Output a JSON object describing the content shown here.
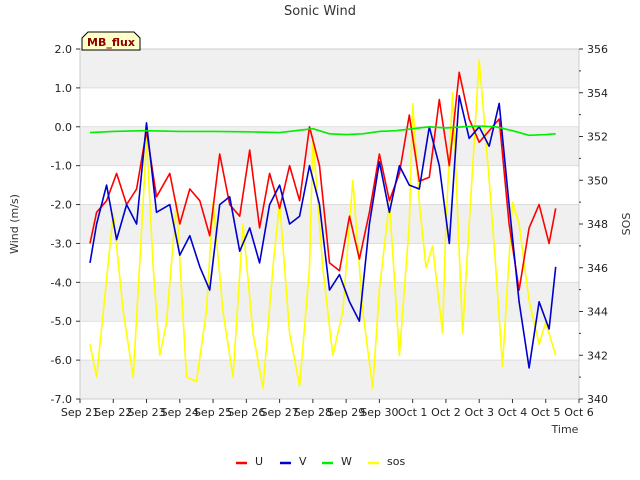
{
  "chart_data": {
    "type": "line",
    "title": "Sonic Wind",
    "xlabel": "Time",
    "ylabel": "Wind (m/s)",
    "y2label": "SOS",
    "badge": "MB_flux",
    "xlim": [
      0,
      15
    ],
    "ylim": [
      -7.0,
      2.0
    ],
    "y2lim": [
      340,
      356
    ],
    "x_ticks": [
      {
        "x": 0,
        "label": "Sep 21"
      },
      {
        "x": 1,
        "label": "Sep 22"
      },
      {
        "x": 2,
        "label": "Sep 23"
      },
      {
        "x": 3,
        "label": "Sep 24"
      },
      {
        "x": 4,
        "label": "Sep 25"
      },
      {
        "x": 5,
        "label": "Sep 26"
      },
      {
        "x": 6,
        "label": "Sep 27"
      },
      {
        "x": 7,
        "label": "Sep 28"
      },
      {
        "x": 8,
        "label": "Sep 29"
      },
      {
        "x": 9,
        "label": "Sep 30"
      },
      {
        "x": 10,
        "label": "Oct 1"
      },
      {
        "x": 11,
        "label": "Oct 2"
      },
      {
        "x": 12,
        "label": "Oct 3"
      },
      {
        "x": 13,
        "label": "Oct 4"
      },
      {
        "x": 14,
        "label": "Oct 5"
      },
      {
        "x": 15,
        "label": "Oct 6"
      }
    ],
    "y_ticks": [
      "-7.0",
      "-6.0",
      "-5.0",
      "-4.0",
      "-3.0",
      "-2.0",
      "-1.0",
      "0.0",
      "1.0",
      "2.0"
    ],
    "y2_ticks": [
      "340",
      "342",
      "344",
      "346",
      "348",
      "350",
      "352",
      "354",
      "356"
    ],
    "series": [
      {
        "name": "U",
        "axis": "left",
        "color": "#ff0000",
        "x": [
          0.3,
          0.5,
          0.8,
          1.1,
          1.4,
          1.7,
          2.0,
          2.3,
          2.7,
          3.0,
          3.3,
          3.6,
          3.9,
          4.2,
          4.5,
          4.8,
          5.1,
          5.4,
          5.7,
          6.0,
          6.3,
          6.6,
          6.9,
          7.2,
          7.5,
          7.8,
          8.1,
          8.4,
          8.7,
          9.0,
          9.3,
          9.6,
          9.9,
          10.2,
          10.5,
          10.8,
          11.1,
          11.4,
          11.7,
          12.0,
          12.3,
          12.6,
          12.9,
          13.2,
          13.5,
          13.8,
          14.1,
          14.3
        ],
        "y": [
          -3.0,
          -2.2,
          -1.9,
          -1.2,
          -2.0,
          -1.6,
          -0.1,
          -1.8,
          -1.2,
          -2.5,
          -1.6,
          -1.9,
          -2.8,
          -0.7,
          -2.0,
          -2.3,
          -0.6,
          -2.6,
          -1.2,
          -2.1,
          -1.0,
          -1.9,
          0.0,
          -1.0,
          -3.5,
          -3.7,
          -2.3,
          -3.4,
          -2.2,
          -0.7,
          -1.9,
          -1.2,
          0.3,
          -1.4,
          -1.3,
          0.7,
          -1.0,
          1.4,
          0.2,
          -0.4,
          -0.1,
          0.2,
          -2.5,
          -4.2,
          -2.6,
          -2.0,
          -3.0,
          -2.1
        ]
      },
      {
        "name": "V",
        "axis": "left",
        "color": "#0000cc",
        "x": [
          0.3,
          0.5,
          0.8,
          1.1,
          1.4,
          1.7,
          2.0,
          2.3,
          2.7,
          3.0,
          3.3,
          3.6,
          3.9,
          4.2,
          4.5,
          4.8,
          5.1,
          5.4,
          5.7,
          6.0,
          6.3,
          6.6,
          6.9,
          7.2,
          7.5,
          7.8,
          8.1,
          8.4,
          8.7,
          9.0,
          9.3,
          9.6,
          9.9,
          10.2,
          10.5,
          10.8,
          11.1,
          11.4,
          11.7,
          12.0,
          12.3,
          12.6,
          12.9,
          13.2,
          13.5,
          13.8,
          14.1,
          14.3
        ],
        "y": [
          -3.5,
          -2.5,
          -1.5,
          -2.9,
          -2.0,
          -2.5,
          0.1,
          -2.2,
          -2.0,
          -3.3,
          -2.8,
          -3.6,
          -4.2,
          -2.0,
          -1.8,
          -3.2,
          -2.6,
          -3.5,
          -2.0,
          -1.5,
          -2.5,
          -2.3,
          -1.0,
          -2.0,
          -4.2,
          -3.8,
          -4.5,
          -5.0,
          -2.5,
          -0.9,
          -2.2,
          -1.0,
          -1.5,
          -1.6,
          0.0,
          -1.0,
          -3.0,
          0.8,
          -0.3,
          0.0,
          -0.5,
          0.6,
          -2.0,
          -4.5,
          -6.2,
          -4.5,
          -5.2,
          -3.6
        ]
      },
      {
        "name": "W",
        "axis": "left",
        "color": "#00ee00",
        "x": [
          0.3,
          1.0,
          2.0,
          3.0,
          4.0,
          5.0,
          6.0,
          7.0,
          7.5,
          8.0,
          8.5,
          9.0,
          9.5,
          10.0,
          10.5,
          11.0,
          11.5,
          12.0,
          12.5,
          13.0,
          13.5,
          14.0,
          14.3
        ],
        "y": [
          -0.15,
          -0.12,
          -0.1,
          -0.12,
          -0.12,
          -0.13,
          -0.15,
          -0.05,
          -0.18,
          -0.2,
          -0.18,
          -0.12,
          -0.1,
          -0.05,
          0.0,
          -0.03,
          0.0,
          0.02,
          0.0,
          -0.1,
          -0.22,
          -0.2,
          -0.18
        ]
      },
      {
        "name": "sos",
        "axis": "right",
        "color": "#ffff00",
        "x": [
          0.3,
          0.5,
          0.7,
          1.0,
          1.3,
          1.6,
          1.9,
          2.0,
          2.2,
          2.4,
          2.6,
          2.9,
          3.2,
          3.5,
          3.8,
          4.0,
          4.3,
          4.6,
          4.9,
          5.2,
          5.5,
          5.8,
          6.0,
          6.3,
          6.6,
          6.9,
          7.0,
          7.3,
          7.6,
          7.9,
          8.2,
          8.5,
          8.8,
          9.0,
          9.3,
          9.6,
          9.9,
          10.0,
          10.2,
          10.4,
          10.6,
          10.9,
          11.0,
          11.2,
          11.5,
          11.7,
          12.0,
          12.3,
          12.5,
          12.7,
          13.0,
          13.2,
          13.5,
          13.8,
          14.0,
          14.3
        ],
        "y": [
          342.5,
          341.0,
          344.0,
          348.5,
          344.0,
          341.0,
          349.0,
          352.0,
          346.0,
          342.0,
          343.5,
          349.0,
          341.0,
          340.8,
          344.0,
          349.0,
          344.0,
          341.0,
          348.0,
          343.0,
          340.5,
          346.0,
          349.0,
          343.0,
          340.6,
          346.0,
          352.0,
          346.0,
          342.0,
          344.0,
          350.0,
          344.0,
          340.5,
          345.0,
          349.0,
          342.0,
          348.0,
          353.5,
          349.0,
          346.0,
          347.0,
          343.0,
          348.0,
          354.0,
          343.0,
          348.0,
          355.5,
          350.0,
          346.0,
          341.5,
          349.0,
          348.0,
          344.5,
          342.5,
          343.5,
          342.0
        ]
      }
    ]
  }
}
